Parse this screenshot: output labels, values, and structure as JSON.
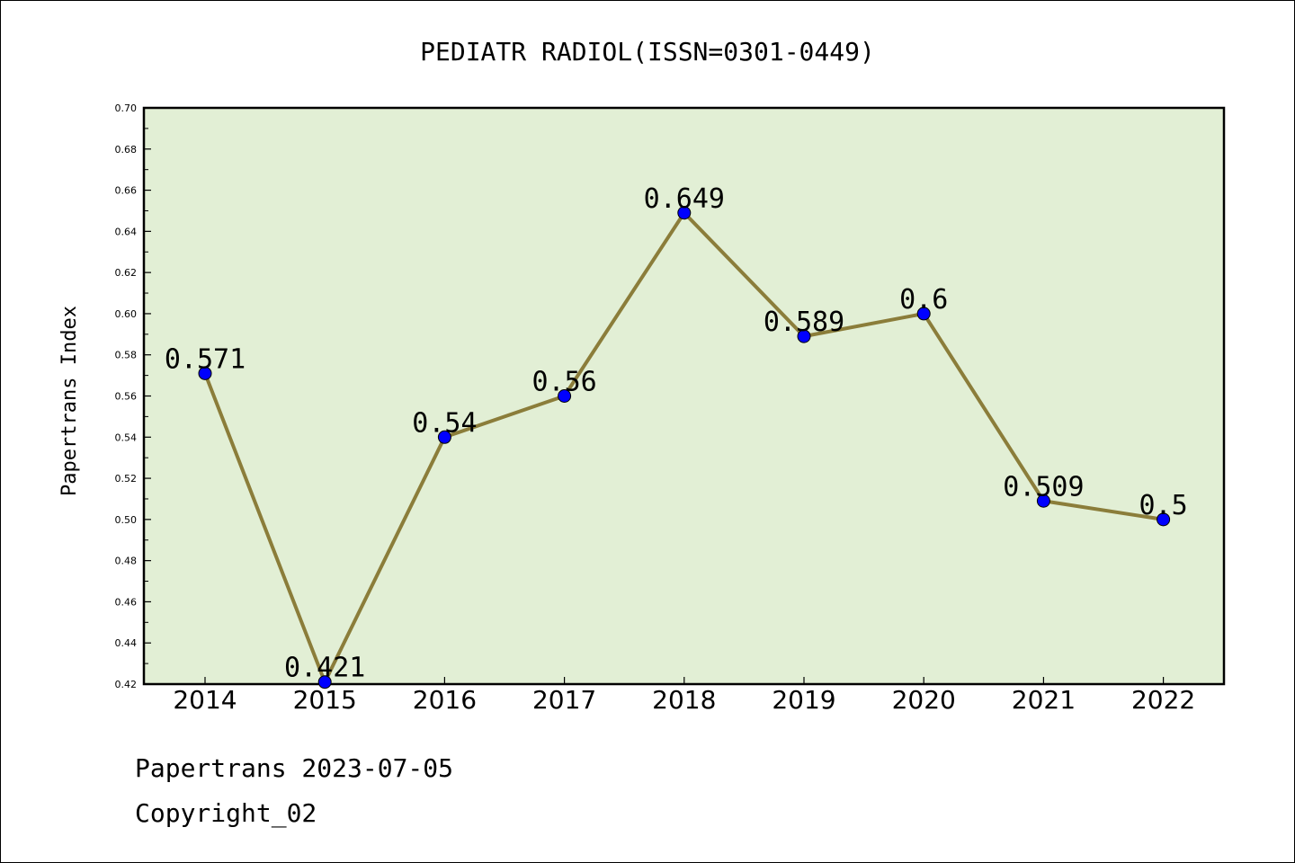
{
  "chart_data": {
    "type": "line",
    "title": "PEDIATR RADIOL(ISSN=0301-0449)",
    "ylabel": "Papertrans Index",
    "xlabel": "",
    "categories": [
      "2014",
      "2015",
      "2016",
      "2017",
      "2018",
      "2019",
      "2020",
      "2021",
      "2022"
    ],
    "values": [
      0.571,
      0.421,
      0.54,
      0.56,
      0.649,
      0.589,
      0.6,
      0.509,
      0.5
    ],
    "value_labels": [
      "0.571",
      "0.421",
      "0.54",
      "0.56",
      "0.649",
      "0.589",
      "0.6",
      "0.509",
      "0.5"
    ],
    "ylim": [
      0.42,
      0.7
    ],
    "yticks": [
      "0.42",
      "0.44",
      "0.46",
      "0.48",
      "0.50",
      "0.52",
      "0.54",
      "0.56",
      "0.58",
      "0.60",
      "0.62",
      "0.64",
      "0.66",
      "0.68",
      "0.70"
    ],
    "grid": false,
    "colors": {
      "plot_background": "#e2efd5",
      "line": "#8b7d3a",
      "marker": "#0000ff"
    }
  },
  "footer": {
    "line1": "Papertrans 2023-07-05",
    "line2": "Copyright_02"
  }
}
